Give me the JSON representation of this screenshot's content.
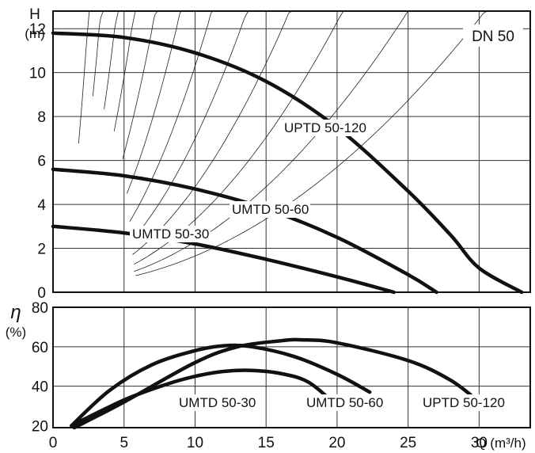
{
  "chart_data": [
    {
      "type": "line",
      "panel": "head",
      "ylabel": "H",
      "yunit": "(m)",
      "badge": "DN 50",
      "xlim": [
        0,
        33.6
      ],
      "ylim": [
        0,
        12.8
      ],
      "xticks": [
        0,
        5,
        10,
        15,
        20,
        25,
        30
      ],
      "yticks": [
        0,
        2,
        4,
        6,
        8,
        10,
        12
      ],
      "grid": true,
      "series": [
        {
          "name": "UPTD 50-120",
          "label": "UPTD 50-120",
          "points": [
            [
              0,
              11.8
            ],
            [
              5,
              11.6
            ],
            [
              10,
              10.9
            ],
            [
              15,
              9.6
            ],
            [
              20,
              7.5
            ],
            [
              25,
              4.6
            ],
            [
              28,
              2.6
            ],
            [
              30,
              1.1
            ],
            [
              33,
              0
            ]
          ]
        },
        {
          "name": "UMTD 50-60",
          "label": "UMTD 50-60",
          "points": [
            [
              0,
              5.6
            ],
            [
              5,
              5.3
            ],
            [
              10,
              4.7
            ],
            [
              15,
              3.8
            ],
            [
              20,
              2.5
            ],
            [
              25,
              0.8
            ],
            [
              27,
              0
            ]
          ]
        },
        {
          "name": "UMTD 50-30",
          "label": "UMTD 50-30",
          "points": [
            [
              0,
              3.0
            ],
            [
              5,
              2.7
            ],
            [
              10,
              2.2
            ],
            [
              15,
              1.5
            ],
            [
              20,
              0.7
            ],
            [
              24,
              0
            ]
          ]
        }
      ]
    },
    {
      "type": "line",
      "panel": "efficiency",
      "ylabel": "η",
      "yunit": "(%)",
      "xlabel": "Q (m³/h)",
      "xlim": [
        0,
        33.6
      ],
      "ylim": [
        19,
        80
      ],
      "xticks": [
        0,
        5,
        10,
        15,
        20,
        25,
        30
      ],
      "yticks": [
        20,
        40,
        60,
        80
      ],
      "grid": true,
      "series": [
        {
          "name": "UMTD 50-30",
          "label": "UMTD 50-30",
          "points": [
            [
              1.3,
              20
            ],
            [
              5,
              33
            ],
            [
              8,
              41
            ],
            [
              10,
              45
            ],
            [
              12,
              47.5
            ],
            [
              14,
              48
            ],
            [
              16,
              46.5
            ],
            [
              18,
              42
            ],
            [
              20,
              30
            ]
          ]
        },
        {
          "name": "UMTD 50-60",
          "label": "UMTD 50-60",
          "points": [
            [
              1.3,
              20
            ],
            [
              4,
              38
            ],
            [
              7,
              51
            ],
            [
              10,
              58
            ],
            [
              12,
              60.5
            ],
            [
              14,
              60
            ],
            [
              17,
              55
            ],
            [
              20,
              46
            ],
            [
              22.3,
              37
            ]
          ]
        },
        {
          "name": "UPTD 50-120",
          "label": "UPTD 50-120",
          "points": [
            [
              1.5,
              19
            ],
            [
              5,
              32
            ],
            [
              10,
              52
            ],
            [
              13,
              60
            ],
            [
              16,
              63
            ],
            [
              17.5,
              63.5
            ],
            [
              20,
              62
            ],
            [
              25,
              53
            ],
            [
              28,
              43
            ],
            [
              30,
              32
            ]
          ]
        }
      ]
    }
  ]
}
